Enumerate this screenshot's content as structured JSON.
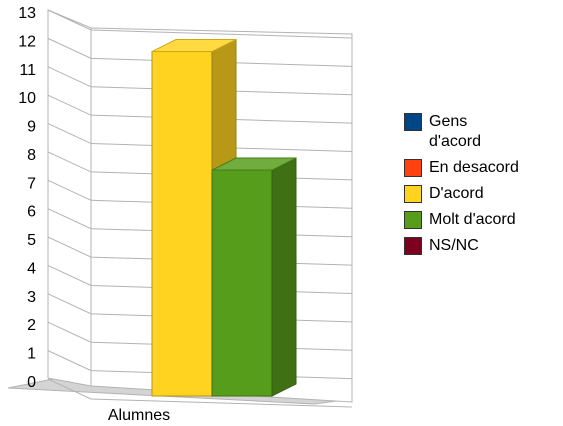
{
  "chart_data": {
    "type": "bar",
    "three_d": true,
    "title": "",
    "xlabel": "",
    "ylabel": "",
    "categories": [
      "Alumnes"
    ],
    "series": [
      {
        "name": "Gens d'acord",
        "values": [
          0
        ],
        "color": "#004586"
      },
      {
        "name": "En desacord",
        "values": [
          0
        ],
        "color": "#ff420e"
      },
      {
        "name": "D'acord",
        "values": [
          12.5
        ],
        "color": "#ffd320"
      },
      {
        "name": "Molt d'acord",
        "values": [
          8.2
        ],
        "color": "#579d1c"
      },
      {
        "name": "NS/NC",
        "values": [
          0
        ],
        "color": "#7e0021"
      }
    ],
    "ylim": [
      0,
      13
    ],
    "yticks": [
      "0",
      "1",
      "2",
      "3",
      "4",
      "5",
      "6",
      "7",
      "8",
      "9",
      "10",
      "11",
      "12",
      "13"
    ],
    "grid": true,
    "legend_position": "right"
  }
}
